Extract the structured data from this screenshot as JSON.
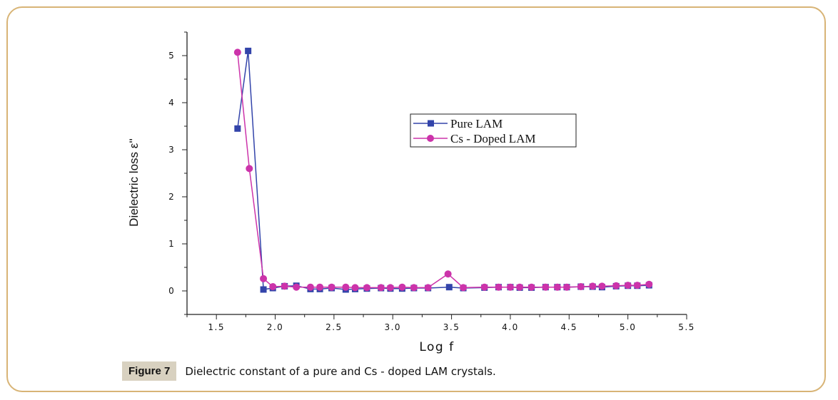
{
  "chart_data": {
    "type": "line",
    "title": "",
    "xlabel": "Log f",
    "ylabel": "Dielectric loss ε''",
    "xlim": [
      1.25,
      5.5
    ],
    "ylim": [
      -0.5,
      5.5
    ],
    "xticks": [
      1.5,
      2.0,
      2.5,
      3.0,
      3.5,
      4.0,
      4.5,
      5.0,
      5.5
    ],
    "xtick_labels": [
      "1.5",
      "2.0",
      "2.5",
      "3.0",
      "3.5",
      "4.0",
      "4.5",
      "5.0",
      "5.5"
    ],
    "yticks": [
      0,
      1,
      2,
      3,
      4,
      5
    ],
    "ytick_labels": [
      "0",
      "1",
      "2",
      "3",
      "4",
      "5"
    ],
    "legend_position": "upper-center-right",
    "grid": false,
    "series": [
      {
        "name": "Pure LAM",
        "color": "#3344aa",
        "marker": "square",
        "x": [
          1.68,
          1.77,
          1.9,
          1.98,
          2.08,
          2.18,
          2.3,
          2.38,
          2.48,
          2.6,
          2.68,
          2.78,
          2.9,
          2.98,
          3.08,
          3.18,
          3.3,
          3.48,
          3.6,
          3.78,
          3.9,
          4.0,
          4.08,
          4.18,
          4.3,
          4.4,
          4.48,
          4.6,
          4.7,
          4.78,
          4.9,
          5.0,
          5.08,
          5.18
        ],
        "values": [
          3.45,
          5.1,
          0.03,
          0.06,
          0.1,
          0.11,
          0.04,
          0.04,
          0.06,
          0.03,
          0.04,
          0.05,
          0.06,
          0.05,
          0.05,
          0.06,
          0.06,
          0.08,
          0.06,
          0.07,
          0.08,
          0.08,
          0.07,
          0.07,
          0.08,
          0.08,
          0.08,
          0.09,
          0.09,
          0.08,
          0.1,
          0.11,
          0.11,
          0.12
        ]
      },
      {
        "name": "Cs - Doped LAM",
        "color": "#cc33aa",
        "marker": "circle",
        "x": [
          1.68,
          1.78,
          1.9,
          1.98,
          2.08,
          2.18,
          2.3,
          2.38,
          2.48,
          2.6,
          2.68,
          2.78,
          2.9,
          2.98,
          3.08,
          3.18,
          3.3,
          3.47,
          3.6,
          3.78,
          3.9,
          4.0,
          4.08,
          4.18,
          4.3,
          4.4,
          4.48,
          4.6,
          4.7,
          4.78,
          4.9,
          5.0,
          5.08,
          5.18
        ],
        "values": [
          5.07,
          2.6,
          0.26,
          0.09,
          0.1,
          0.08,
          0.08,
          0.08,
          0.08,
          0.08,
          0.07,
          0.07,
          0.07,
          0.07,
          0.08,
          0.07,
          0.07,
          0.36,
          0.07,
          0.08,
          0.08,
          0.08,
          0.08,
          0.08,
          0.08,
          0.08,
          0.08,
          0.09,
          0.1,
          0.1,
          0.11,
          0.12,
          0.12,
          0.14
        ]
      }
    ]
  },
  "caption": {
    "label": "Figure 7",
    "text": "Dielectric constant of a pure and Cs - doped LAM crystals."
  }
}
